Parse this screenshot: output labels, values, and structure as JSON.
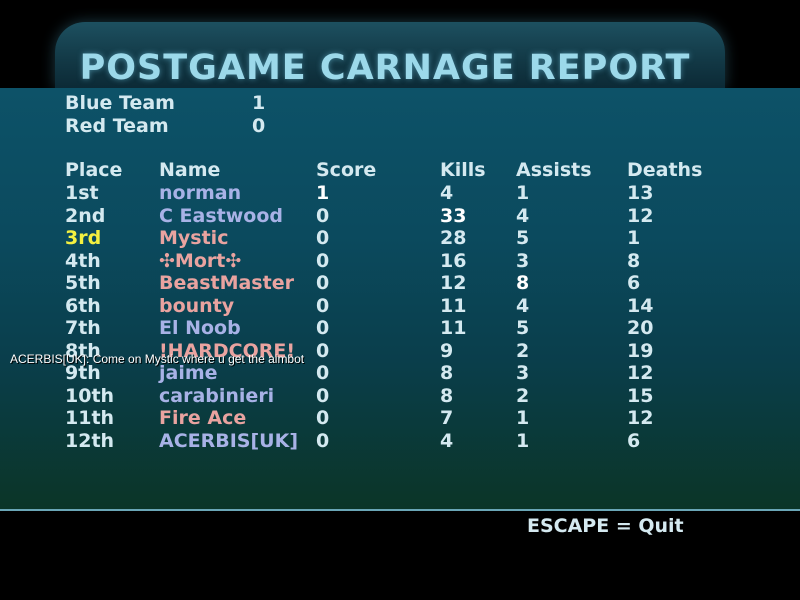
{
  "title": "POSTGAME CARNAGE REPORT",
  "teams": [
    {
      "name": "Blue Team",
      "score": "1"
    },
    {
      "name": "Red Team",
      "score": "0"
    }
  ],
  "headers": {
    "place": "Place",
    "name": "Name",
    "score": "Score",
    "kills": "Kills",
    "assists": "Assists",
    "deaths": "Deaths"
  },
  "rows": [
    {
      "place": "1st",
      "name": "norman",
      "team": "blue",
      "score": "1",
      "kills": "4",
      "assists": "1",
      "deaths": "13"
    },
    {
      "place": "2nd",
      "name": "C Eastwood",
      "team": "blue",
      "score": "0",
      "kills": "33",
      "assists": "4",
      "deaths": "12"
    },
    {
      "place": "3rd",
      "name": "Mystic",
      "team": "red",
      "score": "0",
      "kills": "28",
      "assists": "5",
      "deaths": "1"
    },
    {
      "place": "4th",
      "name": "✣Mort✣",
      "team": "red",
      "score": "0",
      "kills": "16",
      "assists": "3",
      "deaths": "8"
    },
    {
      "place": "5th",
      "name": "BeastMaster",
      "team": "red",
      "score": "0",
      "kills": "12",
      "assists": "8",
      "deaths": "6"
    },
    {
      "place": "6th",
      "name": "bounty",
      "team": "red",
      "score": "0",
      "kills": "11",
      "assists": "4",
      "deaths": "14"
    },
    {
      "place": "7th",
      "name": "El Noob",
      "team": "blue",
      "score": "0",
      "kills": "11",
      "assists": "5",
      "deaths": "20"
    },
    {
      "place": "8th",
      "name": "!HARDCORE!",
      "team": "red",
      "score": "0",
      "kills": "9",
      "assists": "2",
      "deaths": "19"
    },
    {
      "place": "9th",
      "name": "jaime",
      "team": "blue",
      "score": "0",
      "kills": "8",
      "assists": "3",
      "deaths": "12"
    },
    {
      "place": "10th",
      "name": "carabinieri",
      "team": "blue",
      "score": "0",
      "kills": "8",
      "assists": "2",
      "deaths": "15"
    },
    {
      "place": "11th",
      "name": "Fire Ace",
      "team": "red",
      "score": "0",
      "kills": "7",
      "assists": "1",
      "deaths": "12"
    },
    {
      "place": "12th",
      "name": "ACERBIS[UK]",
      "team": "blue",
      "score": "0",
      "kills": "4",
      "assists": "1",
      "deaths": "6"
    }
  ],
  "chat_message": "ACERBIS[UK]: Come on Mystic where u get the aimbot",
  "quit_hint": "ESCAPE = Quit",
  "colors": {
    "blue_team": "#a8b2e6",
    "red_team": "#e9a3a0",
    "highlight": "#f4f040",
    "panel": "#0b4a5e"
  }
}
